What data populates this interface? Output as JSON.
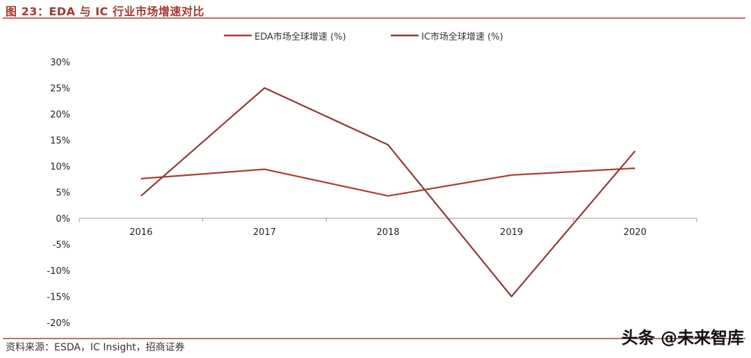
{
  "title": "图 23：EDA 与 IC 行业市场增速对比",
  "source": "资料来源：ESDA，IC Insight，招商证券",
  "watermark": "头条 @未来智库",
  "colors": {
    "title": "#a7362f",
    "series_eda": "#b03a2e",
    "series_ic": "#8c3a36",
    "axis": "#9a9a9a"
  },
  "chart_data": {
    "type": "line",
    "categories": [
      "2016",
      "2017",
      "2018",
      "2019",
      "2020"
    ],
    "series": [
      {
        "name": "EDA市场全球增速 (%)",
        "values": [
          7.6,
          9.4,
          4.3,
          8.3,
          9.6
        ]
      },
      {
        "name": "IC市场全球增速 (%)",
        "values": [
          4.3,
          25.0,
          14.1,
          -15.0,
          12.9
        ]
      }
    ],
    "ylim": [
      -20,
      30
    ],
    "yticks": [
      30,
      25,
      20,
      15,
      10,
      5,
      0,
      -5,
      -10,
      -15,
      -20
    ],
    "ytick_labels": [
      "30%",
      "25%",
      "20%",
      "15%",
      "10%",
      "5%",
      "0%",
      "-5%",
      "-10%",
      "-15%",
      "-20%"
    ],
    "legend": "top-center",
    "grid": false
  }
}
